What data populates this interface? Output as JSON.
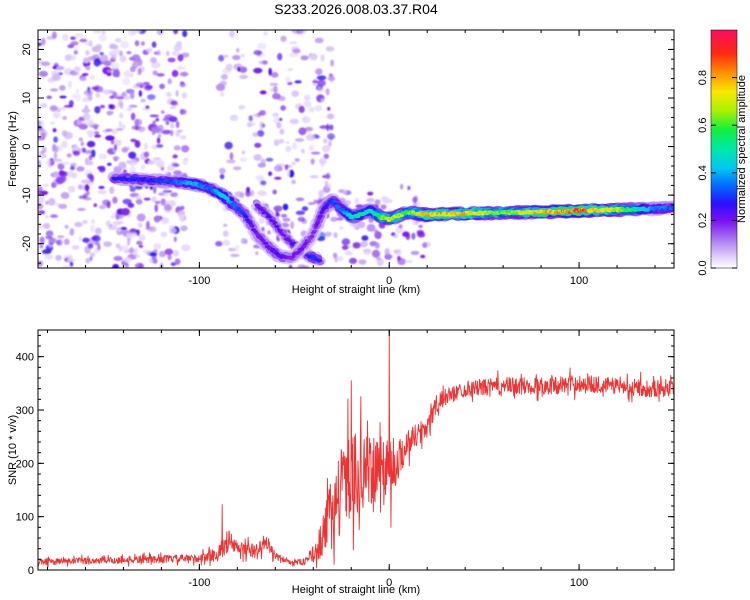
{
  "figure_title": "S233.2026.008.03.37.R04",
  "chart_data": [
    {
      "type": "heatmap",
      "title": "S233.2026.008.03.37.R04",
      "xlabel": "Height of straight line (km)",
      "ylabel": "Frequency (Hz)",
      "xlim": [
        -185,
        150
      ],
      "ylim": [
        -25,
        24
      ],
      "xticks": [
        -100,
        0,
        100
      ],
      "xtick_labels": [
        "-100",
        "0",
        "100"
      ],
      "yticks": [
        -20,
        -10,
        0,
        10,
        20
      ],
      "ytick_labels": [
        "-20",
        "-10",
        "0",
        "10",
        "20"
      ],
      "ridge": {
        "x": [
          -145,
          -130,
          -115,
          -105,
          -95,
          -88,
          -82,
          -76,
          -70,
          -64,
          -58,
          -52,
          -46,
          -40,
          -35,
          -30,
          -25,
          -20,
          -15,
          -10,
          -5,
          0,
          5,
          10,
          20,
          40,
          60,
          80,
          100,
          120,
          140,
          150
        ],
        "frequency": [
          -6.5,
          -6.8,
          -7.2,
          -7.5,
          -8.5,
          -10,
          -12,
          -14,
          -18,
          -20.5,
          -22.5,
          -23,
          -21,
          -18,
          -13,
          -11,
          -13,
          -14.5,
          -14,
          -13,
          -14.5,
          -15,
          -14.2,
          -13.5,
          -14,
          -13.8,
          -13.6,
          -13.5,
          -13.2,
          -13,
          -12.8,
          -12.6
        ],
        "amplitude": [
          0.28,
          0.3,
          0.32,
          0.42,
          0.36,
          0.45,
          0.38,
          0.28,
          0.22,
          0.22,
          0.25,
          0.2,
          0.22,
          0.18,
          0.25,
          0.32,
          0.38,
          0.5,
          0.55,
          0.48,
          0.6,
          0.72,
          0.7,
          0.62,
          0.82,
          0.8,
          0.62,
          0.82,
          0.9,
          0.72,
          0.38,
          0.35
        ]
      },
      "secondary_ridge": {
        "x": [
          -70,
          -62,
          -55,
          -48,
          -42,
          -36
        ],
        "frequency": [
          -12,
          -15,
          -18.5,
          -21,
          -22.5,
          -23.5
        ],
        "amplitude": [
          0.22,
          0.25,
          0.22,
          0.28,
          0.3,
          0.28
        ]
      },
      "colorbar": {
        "label": "Normalized spectral amplitude",
        "range": [
          0,
          1
        ],
        "ticks": [
          0.0,
          0.2,
          0.4,
          0.6,
          0.8
        ],
        "tick_labels": [
          "0.0",
          "0.2",
          "0.4",
          "0.6",
          "0.8"
        ]
      }
    },
    {
      "type": "line",
      "xlabel": "Height of straight line (km)",
      "ylabel": "SNR (10 * v/v)",
      "xlim": [
        -185,
        150
      ],
      "ylim": [
        0,
        450
      ],
      "xticks": [
        -100,
        0,
        100
      ],
      "xtick_labels": [
        "-100",
        "0",
        "100"
      ],
      "yticks": [
        0,
        100,
        200,
        300,
        400
      ],
      "ytick_labels": [
        "0",
        "100",
        "200",
        "300",
        "400"
      ],
      "series": [
        {
          "name": "SNR",
          "color": "#ee3333",
          "envelope": {
            "x": [
              -185,
              -100,
              -90,
              -85,
              -80,
              -70,
              -65,
              -60,
              -52,
              -45,
              -40,
              -35,
              -30,
              -25,
              -20,
              -15,
              -10,
              -5,
              0,
              2,
              5,
              10,
              15,
              20,
              25,
              30,
              40,
              60,
              80,
              100,
              120,
              140,
              150
            ],
            "mean": [
              15,
              22,
              30,
              55,
              40,
              35,
              55,
              25,
              15,
              15,
              30,
              60,
              120,
              160,
              180,
              185,
              180,
              195,
              205,
              180,
              210,
              240,
              255,
              270,
              310,
              325,
              340,
              345,
              345,
              350,
              345,
              340,
              345
            ],
            "jitter": [
              8,
              10,
              18,
              30,
              20,
              18,
              20,
              10,
              6,
              8,
              20,
              50,
              80,
              100,
              110,
              100,
              90,
              70,
              90,
              60,
              45,
              35,
              30,
              30,
              25,
              20,
              20,
              22,
              22,
              22,
              20,
              22,
              20
            ]
          },
          "spikes": [
            {
              "x": -88,
              "y": 123
            },
            {
              "x": -20,
              "y": 355
            },
            {
              "x": -15,
              "y": 325
            },
            {
              "x": 0,
              "y": 448
            },
            {
              "x": 1,
              "y": 80
            }
          ]
        }
      ]
    }
  ]
}
